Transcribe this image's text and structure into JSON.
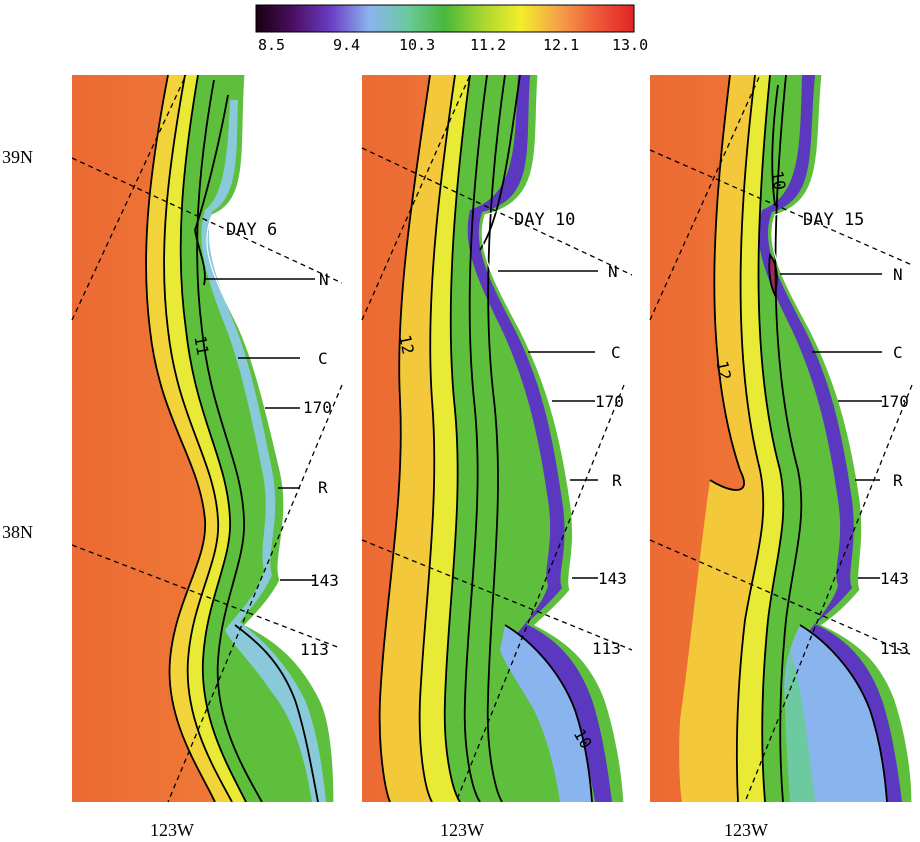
{
  "colorbar": {
    "tick_labels": [
      "8.5",
      "9.4",
      "10.3",
      "11.2",
      "12.1",
      "13.0"
    ],
    "tick_values": [
      8.5,
      9.4,
      10.3,
      11.2,
      12.1,
      13.0
    ],
    "range": [
      8.5,
      13.0
    ],
    "colors": [
      "#1a0010",
      "#4b0f63",
      "#6b3fc4",
      "#8ab4ee",
      "#6cc9a0",
      "#49b83a",
      "#a8d630",
      "#f2ee2a",
      "#f5a24a",
      "#ee5a3a",
      "#e02424"
    ]
  },
  "panels": [
    {
      "title": "DAY 6",
      "x_label": "123W",
      "contour_labels": [
        "11"
      ]
    },
    {
      "title": "DAY 10",
      "x_label": "123W",
      "contour_labels": [
        "12",
        "10"
      ]
    },
    {
      "title": "DAY 15",
      "x_label": "123W",
      "contour_labels": [
        "12",
        "10"
      ]
    }
  ],
  "y_labels": [
    "39N",
    "38N"
  ],
  "section_labels": [
    "N",
    "C",
    "170",
    "R",
    "143",
    "113"
  ]
}
